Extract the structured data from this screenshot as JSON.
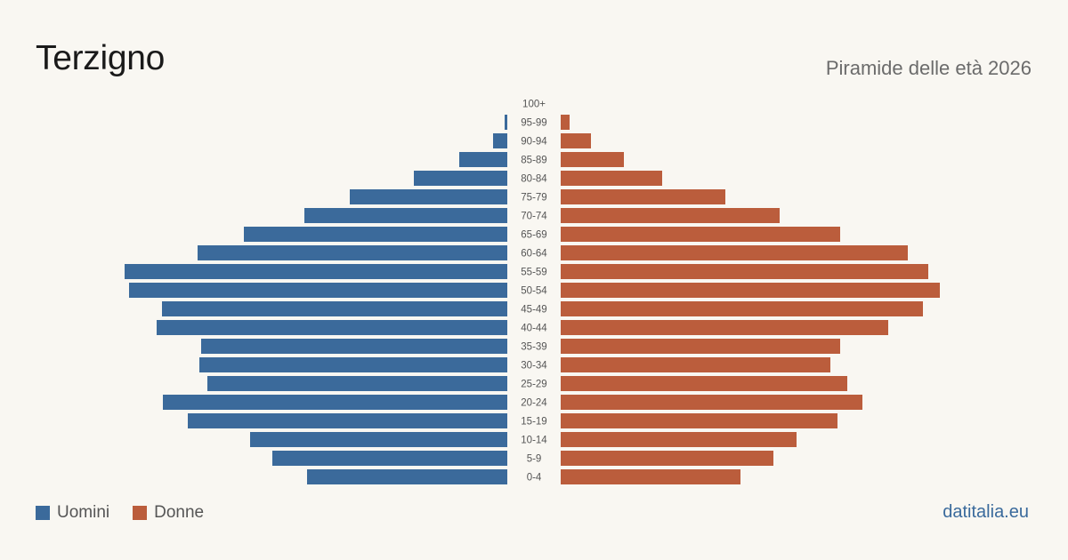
{
  "header": {
    "title": "Terzigno",
    "subtitle": "Piramide delle età 2026"
  },
  "legend": {
    "men_label": "Uomini",
    "women_label": "Donne"
  },
  "footer": {
    "source": "datitalia.eu"
  },
  "colors": {
    "men": "#3b6a9b",
    "women": "#bb5d3c",
    "age_label": "#555555"
  },
  "chart_data": {
    "type": "bar",
    "orientation": "horizontal-pyramid",
    "categories": [
      "100+",
      "95-99",
      "90-94",
      "85-89",
      "80-84",
      "75-79",
      "70-74",
      "65-69",
      "60-64",
      "55-59",
      "50-54",
      "45-49",
      "40-44",
      "35-39",
      "30-34",
      "25-29",
      "20-24",
      "15-19",
      "10-14",
      "5-9",
      "0-4"
    ],
    "series": [
      {
        "name": "Uomini",
        "values": [
          0,
          3,
          16,
          54,
          105,
          177,
          228,
          296,
          348,
          430,
          425,
          388,
          394,
          344,
          346,
          337,
          387,
          359,
          289,
          264,
          225
        ]
      },
      {
        "name": "Donne",
        "values": [
          0,
          10,
          34,
          71,
          114,
          185,
          246,
          314,
          390,
          413,
          426,
          407,
          368,
          314,
          303,
          322,
          339,
          311,
          265,
          239,
          202
        ]
      }
    ],
    "xlim": [
      0,
      430
    ]
  }
}
